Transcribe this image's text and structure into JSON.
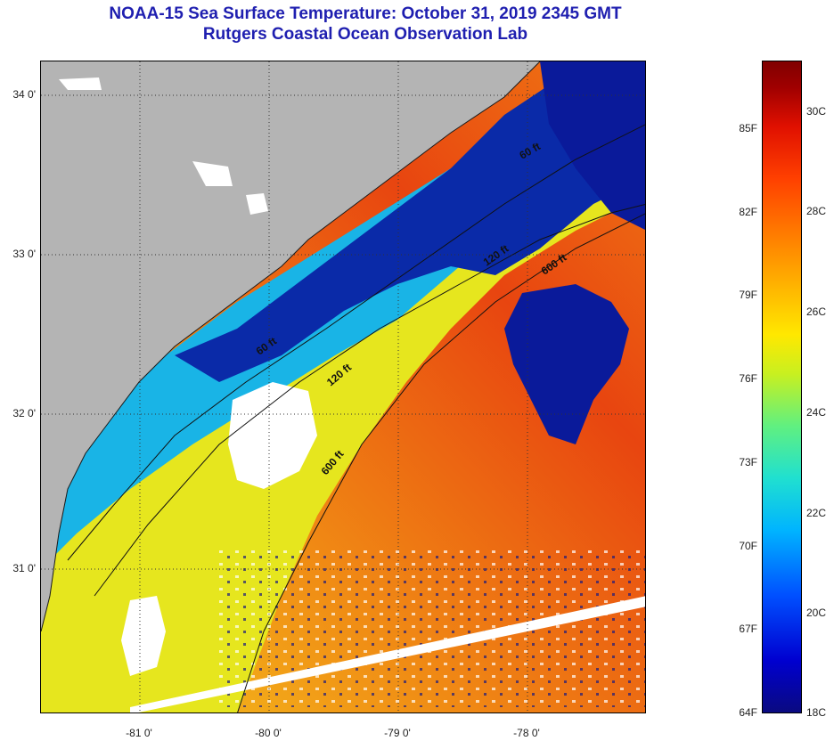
{
  "title": {
    "line1": "NOAA-15 Sea Surface Temperature:  October 31, 2019 2345 GMT",
    "line2": "Rutgers Coastal Ocean Observation Lab"
  },
  "colors": {
    "land": "#b4b4b4",
    "cloud": "#ffffff",
    "cold": "#0a1a9a",
    "cyan": "#19b4e6",
    "yellow": "#e6e61e",
    "orange": "#f08a14",
    "red": "#e84510",
    "title": "#1f1fb0"
  },
  "map": {
    "latitudes": [
      "34 0'",
      "33 0'",
      "32 0'",
      "31 0'"
    ],
    "longitudes": [
      "-81 0'",
      "-80 0'",
      "-79 0'",
      "-78 0'"
    ],
    "contour_labels": [
      "60 ft",
      "120 ft",
      "600 ft",
      "120 ft",
      "600 ft",
      "60 ft"
    ]
  },
  "colorbar": {
    "fahrenheit": [
      "85F",
      "82F",
      "79F",
      "76F",
      "73F",
      "70F",
      "67F",
      "64F"
    ],
    "celsius": [
      "30C",
      "28C",
      "26C",
      "24C",
      "22C",
      "20C",
      "18C"
    ]
  }
}
